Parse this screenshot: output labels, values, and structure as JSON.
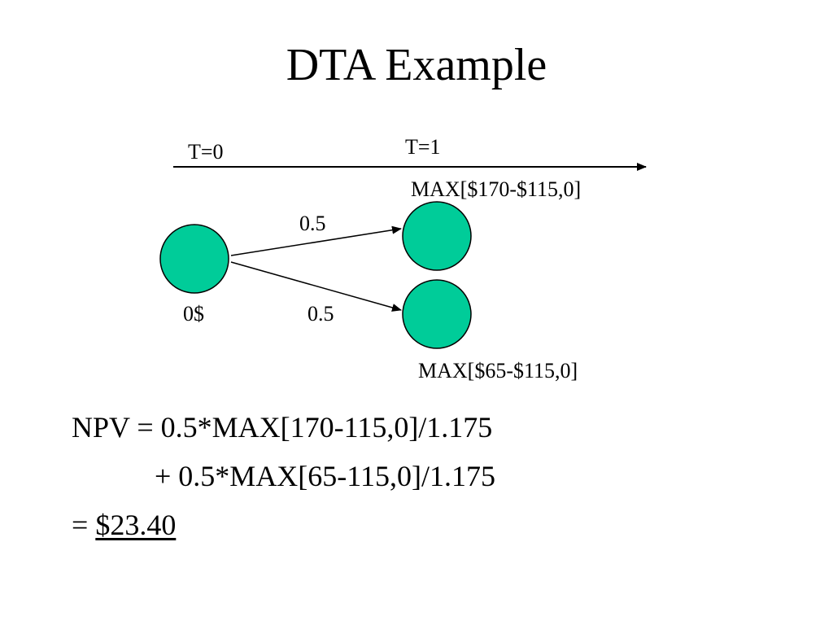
{
  "slide": {
    "title": "DTA Example"
  },
  "timeline": {
    "t0_label": "T=0",
    "t1_label": "T=1"
  },
  "tree": {
    "root_value": "0$",
    "up_probability": "0.5",
    "down_probability": "0.5",
    "up_payoff": "MAX[$170-$115,0]",
    "down_payoff": "MAX[$65-$115,0]"
  },
  "equation": {
    "line1": "NPV = 0.5*MAX[170-115,0]/1.175",
    "line2": "+ 0.5*MAX[65-115,0]/1.175",
    "line3_prefix": "= ",
    "result": "$23.40"
  },
  "colors": {
    "node_fill": "#00CC99",
    "stroke": "#000000"
  }
}
